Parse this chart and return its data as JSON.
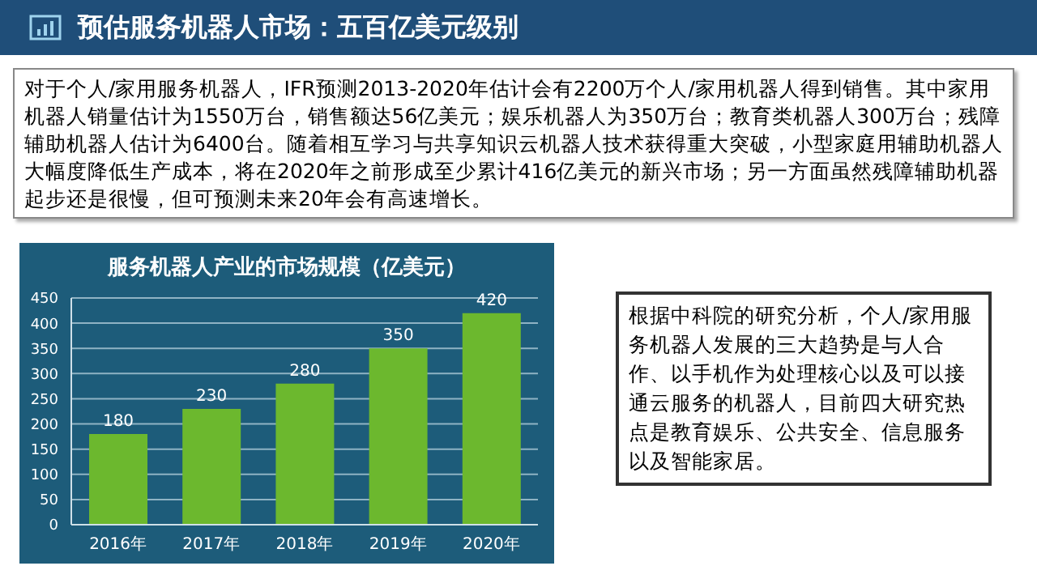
{
  "chart_data": {
    "type": "bar",
    "title": "预估服务机器人市场：五百亿美元级别",
    "subtitle": "服务机器人产业的市场规模（亿美元）",
    "categories": [
      "2016年",
      "2017年",
      "2018年",
      "2019年",
      "2020年"
    ],
    "values": [
      180,
      230,
      280,
      350,
      420
    ],
    "color": "#6cb82e",
    "ylim": [
      0,
      450
    ],
    "yticks": [
      0,
      50,
      100,
      150,
      200,
      250,
      300,
      350,
      400,
      450
    ],
    "grid": "y",
    "data_labels": true,
    "annotations": [
      "对于个人/家用服务机器人，IFR预测2013-2020年估计会有2200万个人/家用机器人得到销售。其中家用机器人销量估计为1550万台，销售额达56亿美元；娱乐机器人为350万台；教育类机器人300万台；残障辅助机器人估计为6400台。随着相互学习与共享知识云机器人技术获得重大突破，小型家庭用辅助机器人大幅度降低生产成本，将在2020年之前形成至少累计416亿美元的新兴市场；另一方面虽然残障辅助机器起步还是很慢，但可预测未来20年会有高速增长。",
      "根据中科院的研究分析，个人/家用服务机器人发展的三大趋势是与人合作、以手机作为处理核心以及可以接通云服务的机器人，目前四大研究热点是教育娱乐、公共安全、信息服务以及智能家居。"
    ]
  }
}
